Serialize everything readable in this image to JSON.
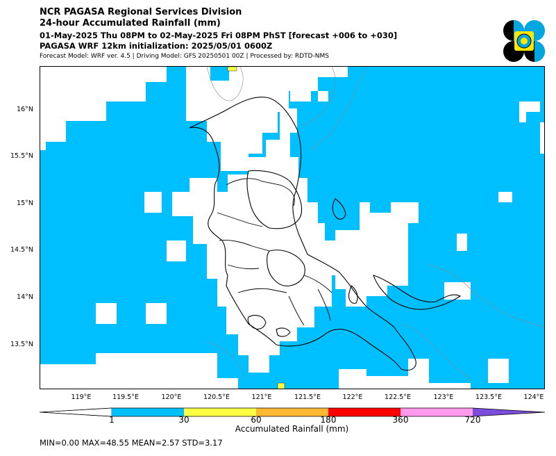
{
  "header": {
    "title1": "NCR PAGASA Regional Services Division",
    "title2": "24-hour Accumulated Rainfall (mm)",
    "period": "01-May-2025 Thu 08PM to 02-May-2025 Fri 08PM PhST [forecast +006 to +030]",
    "init": "PAGASA WRF 12km initialization: 2025/05/01 0600Z",
    "model_info": "Forecast Model: WRF ver. 4.5 | Driving Model: GFS 20250501 00Z | Processed by: RDTD-NMS"
  },
  "logo": {
    "icon": "pagasa-logo-icon",
    "colors": {
      "dark": "#000000",
      "blue": "#00a6e0",
      "yellow": "#ffe600"
    }
  },
  "map": {
    "lat_labels": [
      "16°N",
      "15.5°N",
      "15°N",
      "14.5°N",
      "14°N",
      "13.5°N"
    ],
    "lon_labels": [
      "119°E",
      "119.5°E",
      "120°E",
      "120.5°E",
      "121°E",
      "121.5°E",
      "122°E",
      "122.5°E",
      "123°E",
      "123.5°E",
      "124°E"
    ],
    "rain_color": "#00bfff",
    "yellow_color": "#ffff44"
  },
  "colorbar": {
    "ticks": [
      "1",
      "30",
      "60",
      "180",
      "360",
      "720"
    ],
    "colors": [
      "#ffffff",
      "#00bfff",
      "#ffff44",
      "#ffb833",
      "#ff0000",
      "#ff99ee",
      "#7a4ddb"
    ],
    "label": "Accumulated Rainfall (mm)"
  },
  "stats": {
    "text": "MIN=0.00   MAX=48.55   MEAN=2.57   STD=3.17"
  }
}
